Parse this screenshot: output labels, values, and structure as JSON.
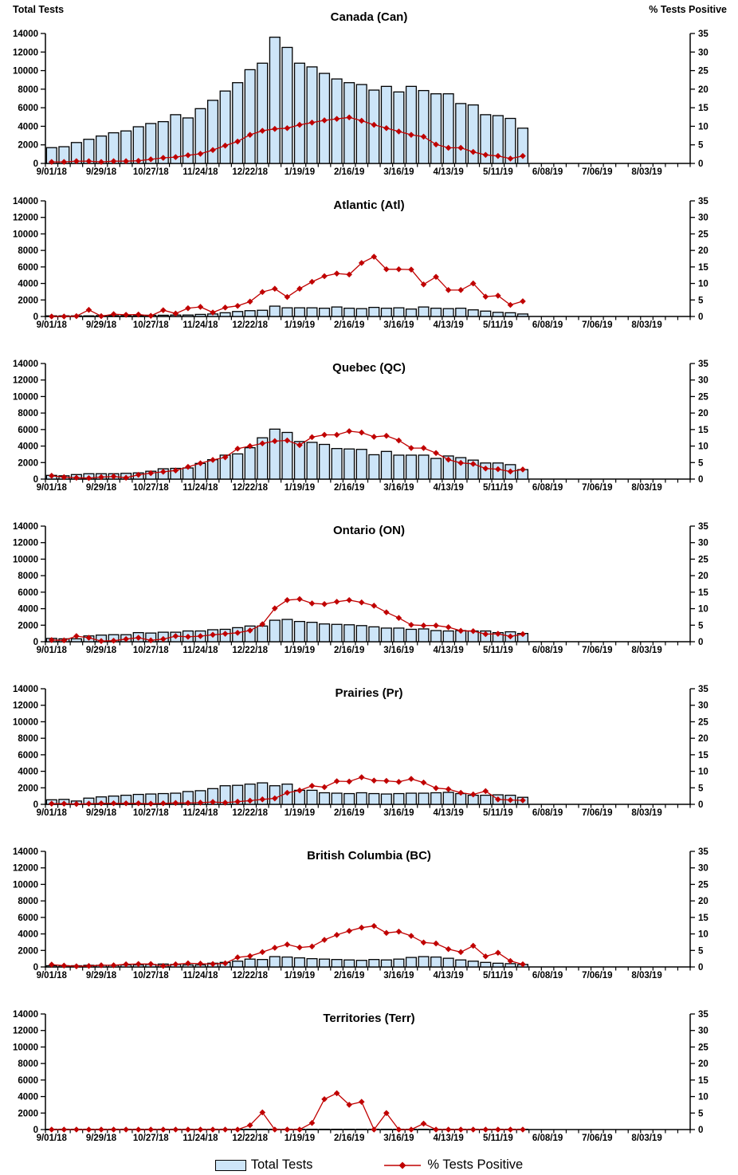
{
  "axes": {
    "left_title": "Total Tests",
    "right_title": "% Tests Positive",
    "left_ticks": [
      0,
      2000,
      4000,
      6000,
      8000,
      10000,
      12000,
      14000
    ],
    "right_ticks": [
      0,
      5,
      10,
      15,
      20,
      25,
      30,
      35
    ],
    "left_max": 14000,
    "right_max": 35,
    "x_tick_labels": [
      "9/01/18",
      "9/29/18",
      "10/27/18",
      "11/24/18",
      "12/22/18",
      "1/19/19",
      "2/16/19",
      "3/16/19",
      "4/13/19",
      "5/11/19",
      "6/08/19",
      "7/06/19",
      "8/03/19"
    ],
    "weeks_total": 52,
    "label_every_weeks": 4
  },
  "legend": {
    "bar_label": "Total Tests",
    "line_label": "% Tests Positive"
  },
  "colors": {
    "bar_fill": "#CDE5F8",
    "bar_stroke": "#000000",
    "line": "#C00000",
    "text": "#000000"
  },
  "chart_data": [
    {
      "type": "combo-bar-line",
      "title": "Canada (Can)",
      "xlabel": "",
      "ylabel_left": "Total Tests",
      "ylabel_right": "% Tests Positive",
      "ylim_left": [
        0,
        14000
      ],
      "ylim_right": [
        0,
        35
      ],
      "series": [
        {
          "name": "Total Tests",
          "type": "bar",
          "axis": "left",
          "values": [
            1700,
            1800,
            2250,
            2600,
            2950,
            3300,
            3500,
            3950,
            4300,
            4500,
            5250,
            4900,
            5900,
            6800,
            7800,
            8700,
            10100,
            10800,
            13600,
            12500,
            10800,
            10400,
            9700,
            9100,
            8700,
            8500,
            7900,
            8300,
            7700,
            8300,
            7850,
            7500,
            7500,
            6450,
            6300,
            5250,
            5150,
            4850,
            3800
          ]
        },
        {
          "name": "% Tests Positive",
          "type": "line",
          "axis": "right",
          "values": [
            0.4,
            0.4,
            0.6,
            0.6,
            0.4,
            0.6,
            0.6,
            0.7,
            1.1,
            1.5,
            1.7,
            2.2,
            2.6,
            3.6,
            4.8,
            5.9,
            7.7,
            8.8,
            9.3,
            9.5,
            10.4,
            11.0,
            11.6,
            12.0,
            12.4,
            11.5,
            10.4,
            9.5,
            8.6,
            7.7,
            7.2,
            5.1,
            4.2,
            4.2,
            3.1,
            2.3,
            2.0,
            1.3,
            2.0
          ]
        }
      ]
    },
    {
      "type": "combo-bar-line",
      "title": "Atlantic (Atl)",
      "ylim_left": [
        0,
        14000
      ],
      "ylim_right": [
        0,
        35
      ],
      "series": [
        {
          "name": "Total Tests",
          "type": "bar",
          "axis": "left",
          "values": [
            75,
            75,
            75,
            75,
            100,
            100,
            100,
            100,
            150,
            150,
            175,
            175,
            250,
            300,
            450,
            600,
            700,
            750,
            1250,
            1050,
            1050,
            1050,
            1000,
            1150,
            1000,
            950,
            1100,
            1000,
            1050,
            900,
            1150,
            1000,
            950,
            1000,
            800,
            650,
            500,
            450,
            300
          ]
        },
        {
          "name": "% Tests Positive",
          "type": "line",
          "axis": "right",
          "values": [
            0,
            0,
            0.1,
            2.0,
            0.1,
            0.7,
            0.5,
            0.6,
            0.2,
            1.9,
            0.9,
            2.5,
            2.9,
            1.2,
            2.7,
            3.2,
            4.5,
            7.4,
            8.4,
            5.9,
            8.4,
            10.5,
            12.2,
            13.0,
            12.7,
            16.2,
            18.1,
            14.3,
            14.3,
            14.2,
            9.7,
            12.0,
            8.0,
            8.0,
            10.0,
            6.0,
            6.3,
            3.5,
            4.6
          ]
        }
      ]
    },
    {
      "type": "combo-bar-line",
      "title": "Quebec (QC)",
      "ylim_left": [
        0,
        14000
      ],
      "ylim_right": [
        0,
        35
      ],
      "series": [
        {
          "name": "Total Tests",
          "type": "bar",
          "axis": "left",
          "values": [
            450,
            400,
            550,
            650,
            650,
            650,
            700,
            750,
            950,
            1250,
            1300,
            1350,
            1900,
            2350,
            2900,
            3050,
            3800,
            5000,
            6050,
            5650,
            4550,
            4450,
            4200,
            3700,
            3650,
            3600,
            2950,
            3350,
            2900,
            2900,
            2900,
            2500,
            2800,
            2600,
            2300,
            1950,
            1950,
            1750,
            1150
          ]
        },
        {
          "name": "% Tests Positive",
          "type": "line",
          "axis": "right",
          "values": [
            1.0,
            0.6,
            0.4,
            0.3,
            0.6,
            0.8,
            0.4,
            1.3,
            1.8,
            2.2,
            2.6,
            3.7,
            4.8,
            5.8,
            6.6,
            9.2,
            10.0,
            10.8,
            11.5,
            11.7,
            10.3,
            12.7,
            13.4,
            13.4,
            14.5,
            14.1,
            12.8,
            13.1,
            11.7,
            9.4,
            9.4,
            7.9,
            5.9,
            4.9,
            4.6,
            3.2,
            3.0,
            2.3,
            2.9
          ]
        }
      ]
    },
    {
      "type": "combo-bar-line",
      "title": "Ontario (ON)",
      "ylim_left": [
        0,
        14000
      ],
      "ylim_right": [
        0,
        35
      ],
      "series": [
        {
          "name": "Total Tests",
          "type": "bar",
          "axis": "left",
          "values": [
            400,
            350,
            350,
            700,
            800,
            850,
            850,
            1100,
            1050,
            1150,
            1150,
            1300,
            1300,
            1450,
            1500,
            1700,
            1900,
            1900,
            2600,
            2700,
            2450,
            2350,
            2150,
            2100,
            2050,
            1950,
            1800,
            1650,
            1650,
            1500,
            1550,
            1350,
            1300,
            1350,
            1300,
            1300,
            1100,
            1200,
            1000
          ]
        },
        {
          "name": "% Tests Positive",
          "type": "line",
          "axis": "right",
          "values": [
            0.5,
            0.4,
            1.7,
            1.2,
            0.2,
            0.3,
            0.8,
            1.2,
            0.4,
            0.8,
            1.7,
            1.5,
            1.7,
            2.1,
            2.4,
            2.7,
            3.4,
            5.3,
            10.1,
            12.6,
            12.9,
            11.6,
            11.4,
            12.1,
            12.6,
            11.9,
            10.9,
            8.9,
            7.2,
            5.1,
            4.9,
            4.9,
            4.4,
            3.3,
            3.2,
            2.3,
            2.4,
            1.6,
            2.3
          ]
        }
      ]
    },
    {
      "type": "combo-bar-line",
      "title": "Prairies (Pr)",
      "ylim_left": [
        0,
        14000
      ],
      "ylim_right": [
        0,
        35
      ],
      "series": [
        {
          "name": "Total Tests",
          "type": "bar",
          "axis": "left",
          "values": [
            550,
            600,
            400,
            750,
            900,
            1000,
            1100,
            1200,
            1250,
            1300,
            1350,
            1550,
            1650,
            1900,
            2250,
            2300,
            2450,
            2600,
            2250,
            2450,
            1700,
            1700,
            1400,
            1350,
            1300,
            1400,
            1300,
            1250,
            1300,
            1350,
            1350,
            1400,
            1450,
            1300,
            1100,
            1100,
            1150,
            1100,
            850
          ]
        },
        {
          "name": "% Tests Positive",
          "type": "line",
          "axis": "right",
          "values": [
            0.2,
            0.2,
            0.1,
            0.2,
            0.3,
            0.3,
            0.3,
            0.3,
            0.2,
            0.3,
            0.4,
            0.4,
            0.5,
            0.7,
            0.5,
            0.8,
            1.1,
            1.5,
            1.8,
            3.5,
            4.2,
            5.6,
            5.2,
            7.0,
            6.9,
            8.2,
            7.2,
            7.1,
            6.8,
            7.7,
            6.6,
            4.9,
            4.6,
            3.5,
            3.0,
            4.0,
            1.5,
            1.3,
            1.2
          ]
        }
      ]
    },
    {
      "type": "combo-bar-line",
      "title": "British Columbia (BC)",
      "ylim_left": [
        0,
        14000
      ],
      "ylim_right": [
        0,
        35
      ],
      "series": [
        {
          "name": "Total Tests",
          "type": "bar",
          "axis": "left",
          "values": [
            150,
            150,
            150,
            200,
            200,
            200,
            250,
            250,
            300,
            350,
            300,
            250,
            250,
            450,
            550,
            700,
            950,
            900,
            1250,
            1200,
            1100,
            1000,
            950,
            900,
            850,
            800,
            900,
            850,
            950,
            1150,
            1250,
            1200,
            1050,
            850,
            700,
            550,
            450,
            400,
            300
          ]
        },
        {
          "name": "% Tests Positive",
          "type": "line",
          "axis": "right",
          "values": [
            0.7,
            0.4,
            0.2,
            0.3,
            0.5,
            0.5,
            0.8,
            0.9,
            0.9,
            0.3,
            0.8,
            1.1,
            1.0,
            0.9,
            1.1,
            2.9,
            3.3,
            4.5,
            5.8,
            6.8,
            5.9,
            6.2,
            8.2,
            9.7,
            10.9,
            11.9,
            12.4,
            10.3,
            10.7,
            9.4,
            7.4,
            7.1,
            5.4,
            4.5,
            6.4,
            3.2,
            4.3,
            1.8,
            0.8
          ]
        }
      ]
    },
    {
      "type": "combo-bar-line",
      "title": "Territories (Terr)",
      "ylim_left": [
        0,
        14000
      ],
      "ylim_right": [
        0,
        35
      ],
      "series": [
        {
          "name": "Total Tests",
          "type": "bar",
          "axis": "left",
          "values": [
            40,
            40,
            40,
            40,
            40,
            40,
            40,
            40,
            40,
            40,
            40,
            40,
            40,
            40,
            40,
            40,
            40,
            40,
            40,
            40,
            40,
            40,
            40,
            40,
            40,
            40,
            40,
            40,
            40,
            40,
            40,
            40,
            40,
            40,
            40,
            40,
            40,
            40,
            40
          ]
        },
        {
          "name": "% Tests Positive",
          "type": "line",
          "axis": "right",
          "values": [
            0,
            0,
            0,
            0,
            0,
            0,
            0,
            0,
            0,
            0,
            0,
            0,
            0,
            0,
            0,
            0,
            1.3,
            5.2,
            0,
            0,
            0,
            2.0,
            9.2,
            11.0,
            7.5,
            8.4,
            0,
            5.0,
            0,
            0,
            1.8,
            0,
            0,
            0,
            0,
            0,
            0,
            0,
            0
          ]
        }
      ]
    }
  ]
}
